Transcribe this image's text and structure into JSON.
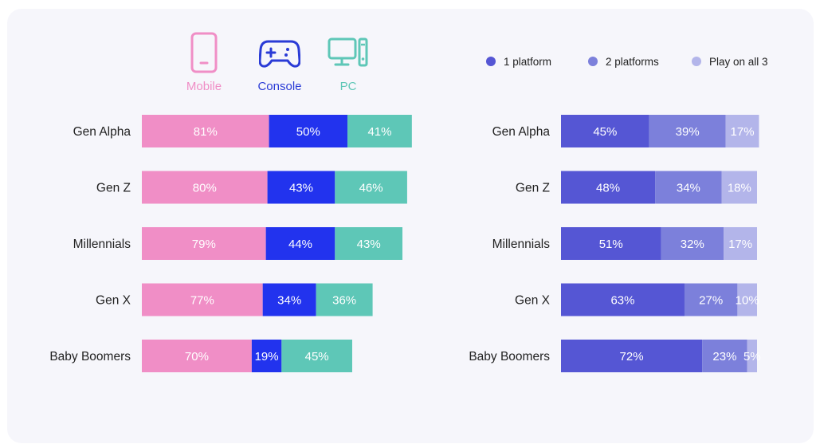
{
  "legend_left": {
    "mobile": {
      "label": "Mobile",
      "color": "#f08ec6",
      "icon": "mobile-icon"
    },
    "console": {
      "label": "Console",
      "color": "#2a3bd6",
      "icon": "gamepad-icon"
    },
    "pc": {
      "label": "PC",
      "color": "#5ec7b7",
      "icon": "desktop-pc-icon"
    }
  },
  "legend_right": [
    {
      "label": "1 platform",
      "color": "#5556d4"
    },
    {
      "label": "2 platforms",
      "color": "#7c80db"
    },
    {
      "label": "Play on all 3",
      "color": "#b3b5ea"
    }
  ],
  "chart_data": [
    {
      "type": "bar",
      "orientation": "horizontal",
      "stacked": true,
      "categories": [
        "Gen Alpha",
        "Gen Z",
        "Millennials",
        "Gen X",
        "Baby Boomers"
      ],
      "series": [
        {
          "name": "Mobile",
          "color": "#f08ec6",
          "values": [
            81,
            80,
            79,
            77,
            70
          ]
        },
        {
          "name": "Console",
          "color": "#2233ee",
          "values": [
            50,
            43,
            44,
            34,
            19
          ]
        },
        {
          "name": "PC",
          "color": "#5ec7b7",
          "values": [
            41,
            46,
            43,
            36,
            45
          ]
        }
      ],
      "title": "",
      "xlabel": "",
      "ylabel": "",
      "grid": false,
      "legend": "top"
    },
    {
      "type": "bar",
      "orientation": "horizontal",
      "stacked": true,
      "categories": [
        "Gen Alpha",
        "Gen Z",
        "Millennials",
        "Gen X",
        "Baby Boomers"
      ],
      "series": [
        {
          "name": "1 platform",
          "color": "#5556d4",
          "values": [
            45,
            48,
            51,
            63,
            72
          ]
        },
        {
          "name": "2 platforms",
          "color": "#7c80db",
          "values": [
            39,
            34,
            32,
            27,
            23
          ]
        },
        {
          "name": "Play on all 3",
          "color": "#b3b5ea",
          "values": [
            17,
            18,
            17,
            10,
            5
          ]
        }
      ],
      "title": "",
      "xlabel": "",
      "ylabel": "",
      "grid": false,
      "legend": "top-right"
    }
  ]
}
